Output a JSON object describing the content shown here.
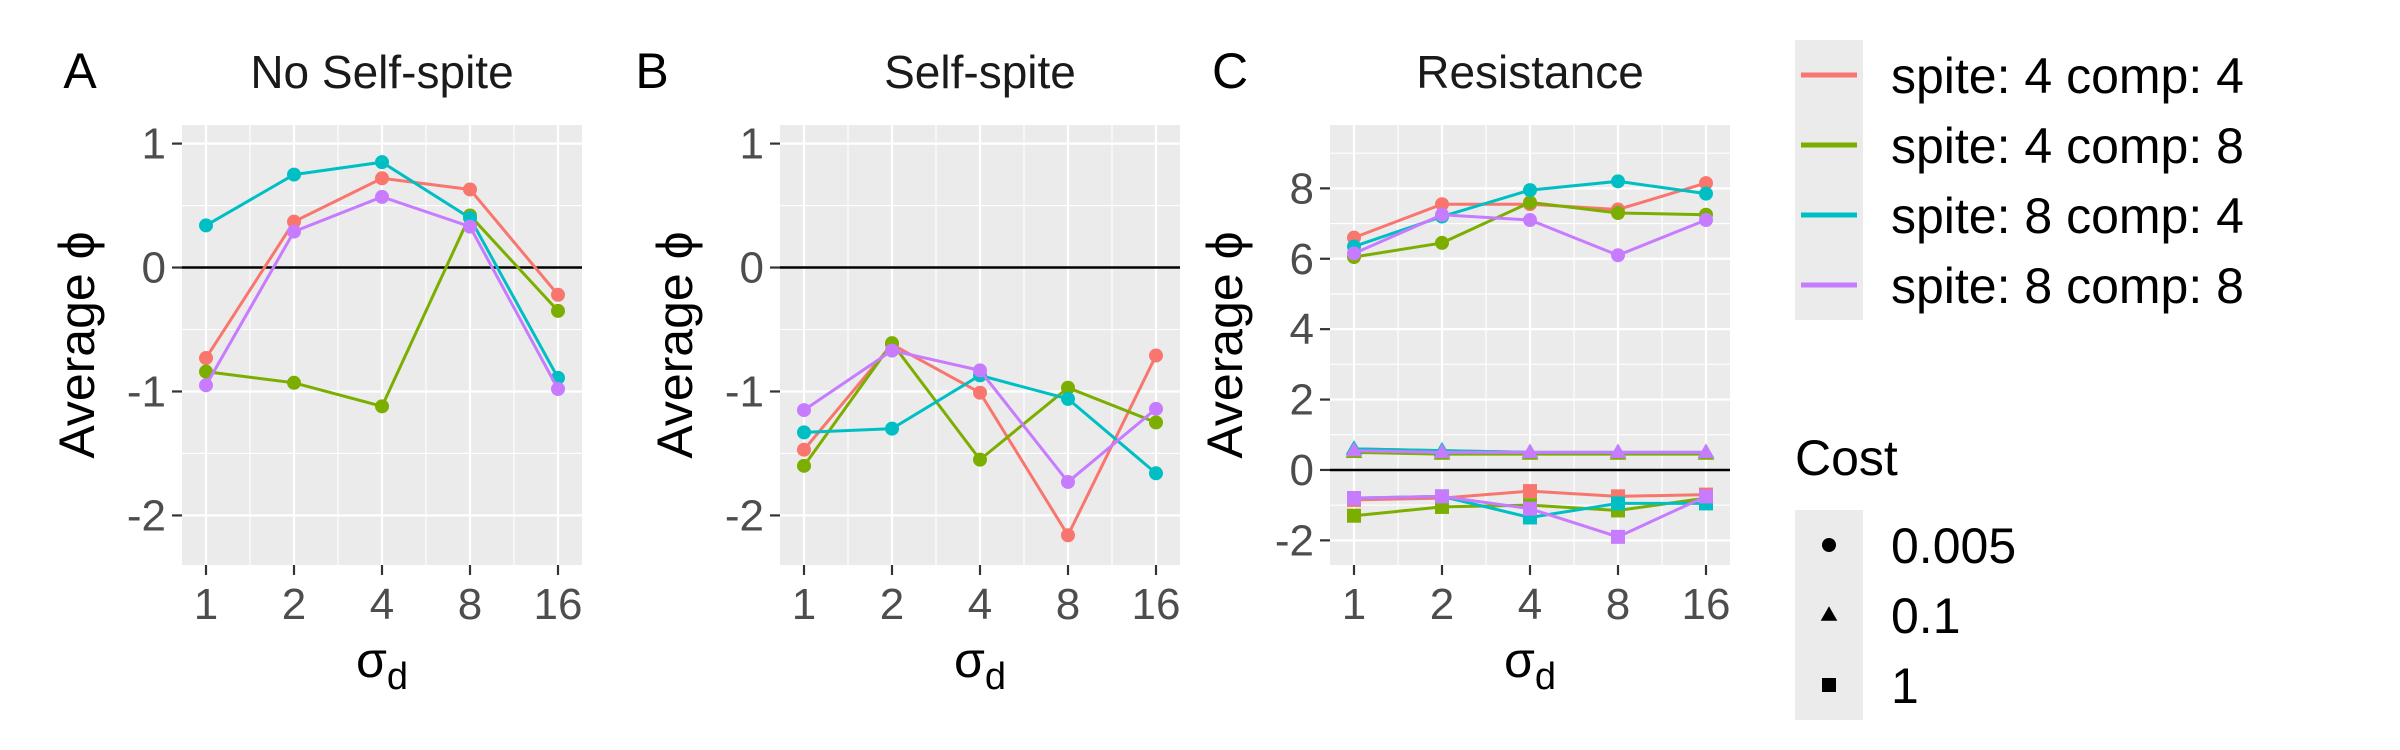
{
  "colors": {
    "spite4_comp4": "#F8766D",
    "spite4_comp8": "#7CAE00",
    "spite8_comp4": "#00BFC4",
    "spite8_comp8": "#C77CFF"
  },
  "legend": {
    "series": [
      {
        "key": "s4c4",
        "label": "spite: 4 comp: 4",
        "color": "#F8766D"
      },
      {
        "key": "s4c8",
        "label": "spite: 4 comp: 8",
        "color": "#7CAE00"
      },
      {
        "key": "s8c4",
        "label": "spite: 8 comp: 4",
        "color": "#00BFC4"
      },
      {
        "key": "s8c8",
        "label": "spite: 8 comp: 8",
        "color": "#C77CFF"
      }
    ],
    "shape_title": "Cost",
    "shapes": [
      {
        "shape": "circle",
        "label": "0.005"
      },
      {
        "shape": "triangle",
        "label": "0.1"
      },
      {
        "shape": "square",
        "label": "1"
      }
    ]
  },
  "chart_data": [
    {
      "type": "line",
      "tag": "A",
      "title": "No Self-spite",
      "xlabel_main": "σ",
      "xlabel_sub": "d",
      "ylabel": "Average ϕ",
      "categories": [
        "1",
        "2",
        "4",
        "8",
        "16"
      ],
      "ylim": [
        -2.4,
        1.15
      ],
      "yticks": [
        -2,
        -1,
        0,
        1
      ],
      "yticklabels": [
        "-2",
        "-1",
        "0",
        "1"
      ],
      "hline": 0,
      "series": [
        {
          "key": "s4c4",
          "cost": "0.005",
          "values": [
            -0.73,
            0.37,
            0.72,
            0.63,
            -0.22
          ]
        },
        {
          "key": "s4c8",
          "cost": "0.005",
          "values": [
            -0.84,
            -0.93,
            -1.12,
            0.42,
            -0.35
          ]
        },
        {
          "key": "s8c4",
          "cost": "0.005",
          "values": [
            0.34,
            0.75,
            0.85,
            0.4,
            -0.89
          ]
        },
        {
          "key": "s8c8",
          "cost": "0.005",
          "values": [
            -0.95,
            0.29,
            0.57,
            0.33,
            -0.98
          ]
        }
      ]
    },
    {
      "type": "line",
      "tag": "B",
      "title": "Self-spite",
      "xlabel_main": "σ",
      "xlabel_sub": "d",
      "ylabel": "Average ϕ",
      "categories": [
        "1",
        "2",
        "4",
        "8",
        "16"
      ],
      "ylim": [
        -2.4,
        1.15
      ],
      "yticks": [
        -2,
        -1,
        0,
        1
      ],
      "yticklabels": [
        "-2",
        "-1",
        "0",
        "1"
      ],
      "hline": 0,
      "series": [
        {
          "key": "s4c4",
          "cost": "0.005",
          "values": [
            -1.47,
            -0.62,
            -1.01,
            -2.16,
            -0.71
          ]
        },
        {
          "key": "s4c8",
          "cost": "0.005",
          "values": [
            -1.6,
            -0.61,
            -1.55,
            -0.97,
            -1.25
          ]
        },
        {
          "key": "s8c4",
          "cost": "0.005",
          "values": [
            -1.33,
            -1.3,
            -0.87,
            -1.06,
            -1.66
          ]
        },
        {
          "key": "s8c8",
          "cost": "0.005",
          "values": [
            -1.15,
            -0.67,
            -0.83,
            -1.73,
            -1.14
          ]
        }
      ]
    },
    {
      "type": "line",
      "tag": "C",
      "title": "Resistance",
      "xlabel_main": "σ",
      "xlabel_sub": "d",
      "ylabel": "Average ϕ",
      "categories": [
        "1",
        "2",
        "4",
        "8",
        "16"
      ],
      "ylim": [
        -2.7,
        9.8
      ],
      "yticks": [
        -2,
        0,
        2,
        4,
        6,
        8
      ],
      "yticklabels": [
        "-2",
        "0",
        "2",
        "4",
        "6",
        "8"
      ],
      "hline": 0,
      "series": [
        {
          "key": "s4c4",
          "cost": "0.005",
          "values": [
            6.6,
            7.55,
            7.55,
            7.4,
            8.15
          ]
        },
        {
          "key": "s4c8",
          "cost": "0.005",
          "values": [
            6.05,
            6.45,
            7.6,
            7.3,
            7.25
          ]
        },
        {
          "key": "s8c4",
          "cost": "0.005",
          "values": [
            6.35,
            7.2,
            7.95,
            8.2,
            7.85
          ]
        },
        {
          "key": "s8c8",
          "cost": "0.005",
          "values": [
            6.15,
            7.25,
            7.1,
            6.1,
            7.1
          ]
        },
        {
          "key": "s4c4",
          "cost": "0.1",
          "values": [
            0.6,
            0.55,
            0.5,
            0.5,
            0.5
          ]
        },
        {
          "key": "s4c8",
          "cost": "0.1",
          "values": [
            0.5,
            0.45,
            0.45,
            0.45,
            0.45
          ]
        },
        {
          "key": "s8c4",
          "cost": "0.1",
          "values": [
            0.6,
            0.55,
            0.5,
            0.5,
            0.5
          ]
        },
        {
          "key": "s8c8",
          "cost": "0.1",
          "values": [
            0.55,
            0.5,
            0.5,
            0.5,
            0.5
          ]
        },
        {
          "key": "s4c4",
          "cost": "1",
          "values": [
            -0.85,
            -0.8,
            -0.6,
            -0.75,
            -0.7
          ]
        },
        {
          "key": "s4c8",
          "cost": "1",
          "values": [
            -1.3,
            -1.05,
            -1.0,
            -1.15,
            -0.8
          ]
        },
        {
          "key": "s8c4",
          "cost": "1",
          "values": [
            -0.8,
            -0.75,
            -1.35,
            -0.95,
            -0.95
          ]
        },
        {
          "key": "s8c8",
          "cost": "1",
          "values": [
            -0.8,
            -0.75,
            -1.1,
            -1.9,
            -0.75
          ]
        }
      ]
    }
  ]
}
